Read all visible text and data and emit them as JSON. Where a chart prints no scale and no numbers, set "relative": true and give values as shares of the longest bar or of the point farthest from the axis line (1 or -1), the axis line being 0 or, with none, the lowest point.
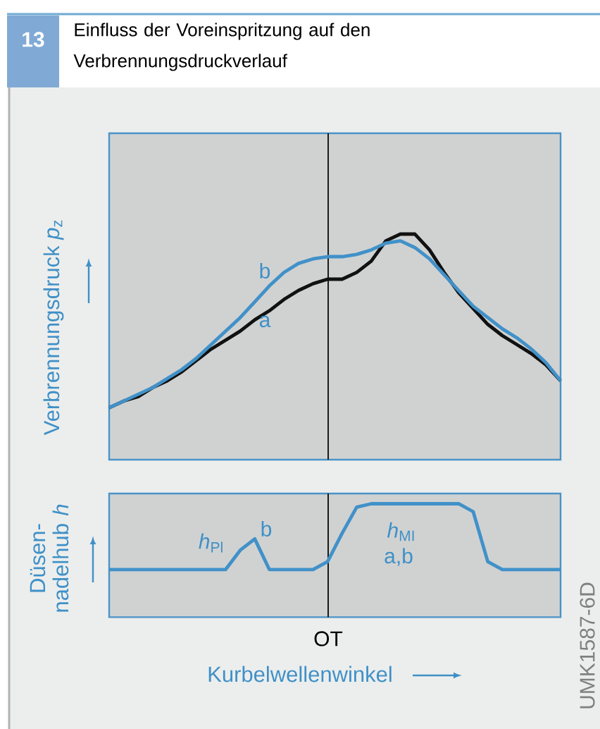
{
  "chart_data": [
    {
      "type": "line",
      "title": "Einfluss der Voreinspritzung auf den Verbrennungsdruckverlauf",
      "ylabel": "Verbrennungsdruck *p*$_{z}$",
      "relative": true,
      "categories": [
        null,
        null,
        null,
        null,
        null,
        null,
        null,
        null,
        null,
        null,
        null,
        null,
        null,
        null,
        null,
        null,
        null,
        null,
        null,
        null,
        null,
        null,
        null,
        null,
        null,
        null,
        null,
        null,
        null,
        null,
        null,
        null
      ],
      "series": [
        {
          "name": "a",
          "color": "#111111",
          "values": [
            0.23,
            0.26,
            0.28,
            0.32,
            0.35,
            0.39,
            0.44,
            0.49,
            0.53,
            0.57,
            0.62,
            0.66,
            0.71,
            0.75,
            0.78,
            0.8,
            0.8,
            0.83,
            0.88,
            0.97,
            1.0,
            1.0,
            0.93,
            0.83,
            0.74,
            0.67,
            0.6,
            0.55,
            0.51,
            0.47,
            0.42,
            0.35
          ]
        },
        {
          "name": "b",
          "color": "#4191c8",
          "values": [
            0.23,
            0.26,
            0.29,
            0.32,
            0.36,
            0.4,
            0.45,
            0.51,
            0.57,
            0.63,
            0.7,
            0.77,
            0.83,
            0.87,
            0.89,
            0.9,
            0.9,
            0.91,
            0.93,
            0.96,
            0.97,
            0.94,
            0.89,
            0.82,
            0.75,
            0.68,
            0.63,
            0.58,
            0.54,
            0.49,
            0.43,
            0.35
          ]
        }
      ],
      "annotations": [
        "13"
      ]
    },
    {
      "type": "line",
      "ylabel": "Düsen-nadelhub *h*",
      "xlabel": "Kurbelwellenwinkel",
      "relative": true,
      "categories": [
        null,
        null,
        null,
        null,
        null,
        null,
        null,
        null,
        null,
        null,
        null,
        null,
        null,
        null,
        null,
        null,
        null,
        null,
        null,
        null,
        null,
        null,
        null,
        null,
        null,
        null,
        null,
        null,
        null,
        null,
        null,
        null
      ],
      "series": [
        {
          "color": "#4191c8",
          "values": [
            0.42,
            0.42,
            0.42,
            0.42,
            0.42,
            0.42,
            0.42,
            0.42,
            0.42,
            0.59,
            0.69,
            0.42,
            0.42,
            0.42,
            0.42,
            0.49,
            0.74,
            0.97,
            1.0,
            1.0,
            1.0,
            1.0,
            1.0,
            1.0,
            1.0,
            0.93,
            0.49,
            0.42,
            0.42,
            0.42,
            0.42,
            0.42
          ]
        }
      ],
      "annotations": [
        "*h*$_{Pl}$",
        "b",
        "*h*$_{MI}$",
        "a,b",
        "UMK1587-6D",
        "OT"
      ]
    }
  ]
}
